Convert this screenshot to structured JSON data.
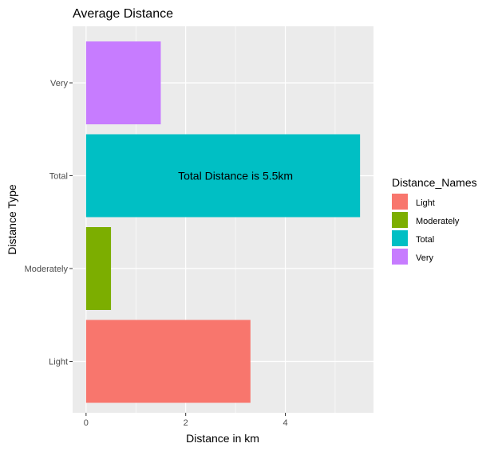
{
  "chart_data": {
    "type": "bar",
    "orientation": "horizontal",
    "title": "Average Distance",
    "xlabel": "Distance in km",
    "ylabel": "Distance Type",
    "categories": [
      "Light",
      "Moderately",
      "Total",
      "Very"
    ],
    "values": [
      3.3,
      0.5,
      5.5,
      1.5
    ],
    "colors": [
      "#F8766D",
      "#7CAE00",
      "#00BFC4",
      "#C77CFF"
    ],
    "xlim": [
      -0.27,
      5.77
    ],
    "xticks": [
      0,
      2,
      4
    ],
    "grid": true,
    "panel_background": "#EBEBEB",
    "grid_color": "#FFFFFF",
    "annotation": {
      "text": "Total Distance is 5.5km",
      "x": 3.0,
      "category": "Total"
    },
    "legend": {
      "title": "Distance_Names",
      "position": "right",
      "items": [
        "Light",
        "Moderately",
        "Total",
        "Very"
      ]
    }
  }
}
